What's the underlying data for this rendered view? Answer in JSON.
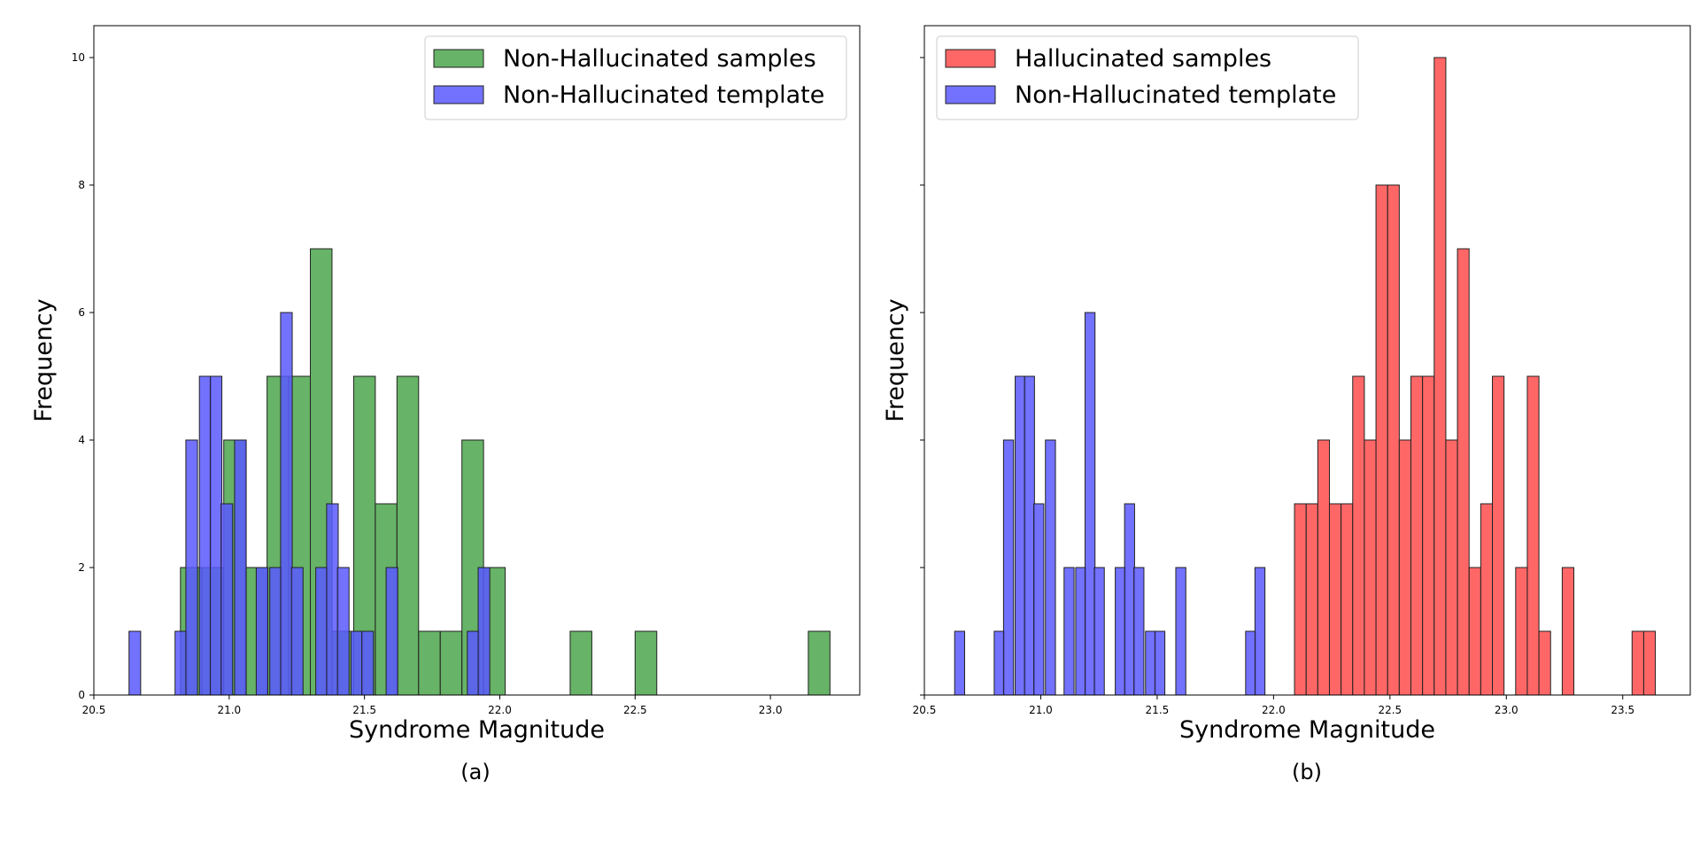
{
  "chart_data": [
    {
      "type": "histogram",
      "caption": "(a)",
      "xlabel": "Syndrome Magnitude",
      "ylabel": "Frequency",
      "xlim": [
        20.5,
        23.33
      ],
      "ylim": [
        0,
        10.5
      ],
      "xticks": [
        "20.5",
        "21.0",
        "21.5",
        "22.0",
        "22.5",
        "23.0"
      ],
      "yticks": [
        "0",
        "2",
        "4",
        "6",
        "8",
        "10"
      ],
      "legend_position": "top-right",
      "series": [
        {
          "name": "Non-Hallucinated samples",
          "color": "#4ca64c",
          "bin_width": 0.08,
          "bins": [
            [
              20.82,
              2
            ],
            [
              20.9,
              2
            ],
            [
              20.98,
              4
            ],
            [
              21.06,
              2
            ],
            [
              21.14,
              5
            ],
            [
              21.22,
              5
            ],
            [
              21.3,
              7
            ],
            [
              21.38,
              1
            ],
            [
              21.46,
              5
            ],
            [
              21.54,
              3
            ],
            [
              21.62,
              5
            ],
            [
              21.7,
              1
            ],
            [
              21.78,
              1
            ],
            [
              21.86,
              4
            ],
            [
              21.94,
              2
            ],
            [
              22.26,
              1
            ],
            [
              22.5,
              1
            ],
            [
              23.14,
              1
            ]
          ]
        },
        {
          "name": "Non-Hallucinated template",
          "color": "#5959ff",
          "bin_width": 0.043,
          "bins": [
            [
              20.63,
              1
            ],
            [
              20.8,
              1
            ],
            [
              20.84,
              4
            ],
            [
              20.89,
              5
            ],
            [
              20.93,
              5
            ],
            [
              20.97,
              3
            ],
            [
              21.02,
              4
            ],
            [
              21.1,
              2
            ],
            [
              21.15,
              2
            ],
            [
              21.19,
              6
            ],
            [
              21.23,
              2
            ],
            [
              21.32,
              2
            ],
            [
              21.36,
              3
            ],
            [
              21.4,
              2
            ],
            [
              21.45,
              1
            ],
            [
              21.49,
              1
            ],
            [
              21.58,
              2
            ],
            [
              21.88,
              1
            ],
            [
              21.92,
              2
            ]
          ]
        }
      ]
    },
    {
      "type": "histogram",
      "caption": "(b)",
      "xlabel": "Syndrome Magnitude",
      "ylabel": "Frequency",
      "xlim": [
        20.5,
        23.79
      ],
      "ylim": [
        0,
        10.5
      ],
      "xticks": [
        "20.5",
        "21.0",
        "21.5",
        "22.0",
        "22.5",
        "23.0",
        "23.5"
      ],
      "yticks": [
        "0",
        "2",
        "4",
        "6",
        "8",
        "10"
      ],
      "legend_position": "top-left",
      "series": [
        {
          "name": "Hallucinated samples",
          "color": "#ff4c4c",
          "bin_width": 0.05,
          "bins": [
            [
              22.09,
              3
            ],
            [
              22.14,
              3
            ],
            [
              22.19,
              4
            ],
            [
              22.24,
              3
            ],
            [
              22.29,
              3
            ],
            [
              22.34,
              5
            ],
            [
              22.39,
              4
            ],
            [
              22.44,
              8
            ],
            [
              22.49,
              8
            ],
            [
              22.54,
              4
            ],
            [
              22.59,
              5
            ],
            [
              22.64,
              5
            ],
            [
              22.69,
              10
            ],
            [
              22.74,
              4
            ],
            [
              22.79,
              7
            ],
            [
              22.84,
              2
            ],
            [
              22.89,
              3
            ],
            [
              22.94,
              5
            ],
            [
              23.04,
              2
            ],
            [
              23.09,
              5
            ],
            [
              23.14,
              1
            ],
            [
              23.24,
              2
            ],
            [
              23.54,
              1
            ],
            [
              23.59,
              1
            ]
          ]
        },
        {
          "name": "Non-Hallucinated template",
          "color": "#5959ff",
          "bin_width": 0.043,
          "bins": [
            [
              20.63,
              1
            ],
            [
              20.8,
              1
            ],
            [
              20.84,
              4
            ],
            [
              20.89,
              5
            ],
            [
              20.93,
              5
            ],
            [
              20.97,
              3
            ],
            [
              21.02,
              4
            ],
            [
              21.1,
              2
            ],
            [
              21.15,
              2
            ],
            [
              21.19,
              6
            ],
            [
              21.23,
              2
            ],
            [
              21.32,
              2
            ],
            [
              21.36,
              3
            ],
            [
              21.4,
              2
            ],
            [
              21.45,
              1
            ],
            [
              21.49,
              1
            ],
            [
              21.58,
              2
            ],
            [
              21.88,
              1
            ],
            [
              21.92,
              2
            ]
          ]
        }
      ]
    }
  ]
}
